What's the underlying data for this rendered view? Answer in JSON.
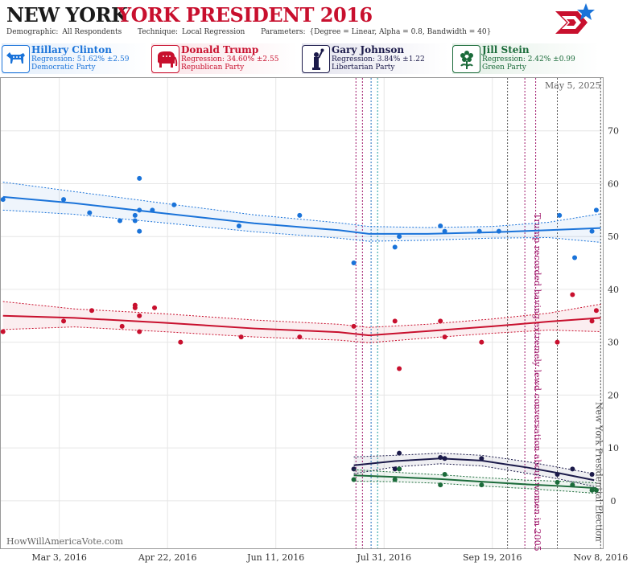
{
  "header": {
    "state": "NEW YORK",
    "subtitle": "YORK PRESIDENT 2016",
    "demographic_key": "Demographic:",
    "demographic_val": "All Respondents",
    "technique_key": "Technique:",
    "technique_val": "Local Regression",
    "parameters_key": "Parameters:",
    "parameters_val": "{Degree = Linear, Alpha = 0.8, Bandwidth = 40}"
  },
  "candidates": [
    {
      "name": "Hillary Clinton",
      "regression": "Regression: 51.62% ±2.59",
      "party": "Democratic Party",
      "color": "#1a73d9",
      "icon": "donkey-icon"
    },
    {
      "name": "Donald Trump",
      "regression": "Regression: 34.60% ±2.55",
      "party": "Republican Party",
      "color": "#c8102e",
      "icon": "elephant-icon"
    },
    {
      "name": "Gary Johnson",
      "regression": "Regression: 3.84% ±1.22",
      "party": "Libertarian Party",
      "color": "#1b1a4a",
      "icon": "liberty-statue-icon"
    },
    {
      "name": "Jill Stein",
      "regression": "Regression: 2.42% ±0.99",
      "party": "Green Party",
      "color": "#1b6b3a",
      "icon": "flower-icon"
    }
  ],
  "footer": {
    "watermark": "HowWillAmericaVote.com",
    "datestamp": "May 5, 2025"
  },
  "chart_data": {
    "type": "scatter",
    "x_tick_labels": [
      "Mar 3, 2016",
      "Apr 22, 2016",
      "Jun 11, 2016",
      "Jul 31, 2016",
      "Sep 19, 2016",
      "Nov 8, 2016"
    ],
    "x_ticks": [
      "2016-03-03",
      "2016-04-22",
      "2016-06-11",
      "2016-07-31",
      "2016-09-19",
      "2016-11-08"
    ],
    "xlim": [
      "2016-02-05",
      "2016-11-09"
    ],
    "y_ticks": [
      0,
      10,
      20,
      30,
      40,
      50,
      60,
      70
    ],
    "ylim": [
      -9,
      80
    ],
    "grid": true,
    "annotations": [
      {
        "date": "2016-10-07",
        "text": "Trump recorded having extremely lewd conversation about women in 2005",
        "color": "#a0186b"
      },
      {
        "date": "2016-11-08",
        "text": "New York Presidential Election",
        "color": "#555555"
      }
    ],
    "event_lines": [
      {
        "date": "2016-07-18",
        "color": "#a0186b"
      },
      {
        "date": "2016-07-21",
        "color": "#a0186b"
      },
      {
        "date": "2016-07-25",
        "color": "#1f6fbf"
      },
      {
        "date": "2016-07-28",
        "color": "#1f9e9e"
      },
      {
        "date": "2016-09-26",
        "color": "#555555"
      },
      {
        "date": "2016-10-04",
        "color": "#a0186b"
      },
      {
        "date": "2016-10-09",
        "color": "#a0186b"
      },
      {
        "date": "2016-10-19",
        "color": "#555555"
      },
      {
        "date": "2016-11-08",
        "color": "#555555"
      }
    ],
    "series": [
      {
        "name": "Hillary Clinton",
        "color": "#1a73d9",
        "points": [
          [
            "2016-02-06",
            57
          ],
          [
            "2016-03-05",
            57
          ],
          [
            "2016-03-17",
            54.5
          ],
          [
            "2016-03-31",
            53
          ],
          [
            "2016-04-07",
            54
          ],
          [
            "2016-04-07",
            53
          ],
          [
            "2016-04-09",
            61
          ],
          [
            "2016-04-09",
            51
          ],
          [
            "2016-04-09",
            55
          ],
          [
            "2016-04-15",
            55
          ],
          [
            "2016-04-25",
            56
          ],
          [
            "2016-05-25",
            52
          ],
          [
            "2016-06-22",
            54
          ],
          [
            "2016-07-17",
            45
          ],
          [
            "2016-08-05",
            48
          ],
          [
            "2016-08-07",
            50
          ],
          [
            "2016-08-26",
            52
          ],
          [
            "2016-08-28",
            51
          ],
          [
            "2016-09-13",
            51
          ],
          [
            "2016-09-22",
            51
          ],
          [
            "2016-10-20",
            54
          ],
          [
            "2016-10-27",
            46
          ],
          [
            "2016-11-04",
            51
          ],
          [
            "2016-11-06",
            55
          ]
        ],
        "trend": [
          [
            "2016-02-06",
            57.5
          ],
          [
            "2016-03-10",
            56.3
          ],
          [
            "2016-04-20",
            54.4
          ],
          [
            "2016-06-01",
            52.5
          ],
          [
            "2016-07-10",
            51.2
          ],
          [
            "2016-07-24",
            50.5
          ],
          [
            "2016-08-20",
            50.5
          ],
          [
            "2016-09-19",
            50.8
          ],
          [
            "2016-10-15",
            51.2
          ],
          [
            "2016-11-08",
            51.6
          ]
        ],
        "band": [
          [
            "2016-02-06",
            55,
            60.3
          ],
          [
            "2016-03-10",
            54.2,
            58.5
          ],
          [
            "2016-04-20",
            52.6,
            56.3
          ],
          [
            "2016-06-01",
            50.9,
            54.1
          ],
          [
            "2016-07-10",
            49.7,
            52.6
          ],
          [
            "2016-07-24",
            49.1,
            51.9
          ],
          [
            "2016-08-20",
            49.3,
            51.7
          ],
          [
            "2016-09-19",
            49.7,
            51.9
          ],
          [
            "2016-10-15",
            49.8,
            52.7
          ],
          [
            "2016-11-08",
            48.9,
            54.3
          ]
        ]
      },
      {
        "name": "Donald Trump",
        "color": "#c8102e",
        "points": [
          [
            "2016-02-06",
            32
          ],
          [
            "2016-03-05",
            34
          ],
          [
            "2016-03-18",
            36
          ],
          [
            "2016-04-01",
            33
          ],
          [
            "2016-04-07",
            37
          ],
          [
            "2016-04-07",
            36.5
          ],
          [
            "2016-04-09",
            35
          ],
          [
            "2016-04-09",
            32
          ],
          [
            "2016-04-16",
            36.5
          ],
          [
            "2016-04-28",
            30
          ],
          [
            "2016-05-26",
            31
          ],
          [
            "2016-06-22",
            31
          ],
          [
            "2016-07-17",
            33
          ],
          [
            "2016-08-05",
            34
          ],
          [
            "2016-08-07",
            25
          ],
          [
            "2016-08-26",
            34
          ],
          [
            "2016-08-28",
            31
          ],
          [
            "2016-09-14",
            30
          ],
          [
            "2016-10-19",
            30
          ],
          [
            "2016-10-26",
            39
          ],
          [
            "2016-11-04",
            34
          ],
          [
            "2016-11-06",
            36
          ]
        ],
        "trend": [
          [
            "2016-02-06",
            35
          ],
          [
            "2016-03-10",
            34.6
          ],
          [
            "2016-04-20",
            33.7
          ],
          [
            "2016-06-01",
            32.6
          ],
          [
            "2016-07-10",
            31.9
          ],
          [
            "2016-07-24",
            31.3
          ],
          [
            "2016-08-20",
            32.1
          ],
          [
            "2016-09-19",
            33
          ],
          [
            "2016-10-15",
            33.9
          ],
          [
            "2016-11-08",
            34.6
          ]
        ],
        "band": [
          [
            "2016-02-06",
            32.4,
            37.7
          ],
          [
            "2016-03-10",
            32.9,
            36.3
          ],
          [
            "2016-04-20",
            32,
            35.4
          ],
          [
            "2016-06-01",
            31,
            34.2
          ],
          [
            "2016-07-10",
            30.4,
            33.4
          ],
          [
            "2016-07-24",
            29.9,
            32.8
          ],
          [
            "2016-08-20",
            30.8,
            33.4
          ],
          [
            "2016-09-19",
            31.7,
            34.4
          ],
          [
            "2016-10-15",
            32.3,
            35.5
          ],
          [
            "2016-11-08",
            32,
            37.2
          ]
        ]
      },
      {
        "name": "Gary Johnson",
        "color": "#1b1a4a",
        "points": [
          [
            "2016-07-17",
            6
          ],
          [
            "2016-08-05",
            6
          ],
          [
            "2016-08-07",
            9
          ],
          [
            "2016-08-07",
            6
          ],
          [
            "2016-08-26",
            8.2
          ],
          [
            "2016-08-28",
            8
          ],
          [
            "2016-09-14",
            8
          ],
          [
            "2016-10-19",
            5
          ],
          [
            "2016-10-26",
            6
          ],
          [
            "2016-11-04",
            5
          ]
        ],
        "trend": [
          [
            "2016-07-17",
            6.7
          ],
          [
            "2016-08-05",
            7.5
          ],
          [
            "2016-08-26",
            8
          ],
          [
            "2016-09-14",
            7.6
          ],
          [
            "2016-10-05",
            6.3
          ],
          [
            "2016-10-20",
            5.2
          ],
          [
            "2016-11-05",
            3.9
          ]
        ],
        "band": [
          [
            "2016-07-17",
            5.1,
            8.3
          ],
          [
            "2016-08-05",
            6.4,
            8.6
          ],
          [
            "2016-08-26",
            7,
            9
          ],
          [
            "2016-09-14",
            6.6,
            8.6
          ],
          [
            "2016-10-05",
            5.2,
            7.4
          ],
          [
            "2016-10-20",
            4.1,
            6.3
          ],
          [
            "2016-11-05",
            2.7,
            5.1
          ]
        ]
      },
      {
        "name": "Jill Stein",
        "color": "#1b6b3a",
        "points": [
          [
            "2016-07-17",
            4
          ],
          [
            "2016-08-05",
            4
          ],
          [
            "2016-08-07",
            6
          ],
          [
            "2016-08-26",
            3
          ],
          [
            "2016-08-28",
            5
          ],
          [
            "2016-09-14",
            3
          ],
          [
            "2016-10-19",
            3.5
          ],
          [
            "2016-10-26",
            3
          ],
          [
            "2016-11-04",
            2
          ],
          [
            "2016-11-06",
            2
          ]
        ],
        "trend": [
          [
            "2016-07-17",
            4.8
          ],
          [
            "2016-08-05",
            4.5
          ],
          [
            "2016-08-26",
            4.1
          ],
          [
            "2016-09-14",
            3.6
          ],
          [
            "2016-10-05",
            3.1
          ],
          [
            "2016-10-20",
            2.8
          ],
          [
            "2016-11-06",
            2.4
          ]
        ],
        "band": [
          [
            "2016-07-17",
            3.7,
            5.9
          ],
          [
            "2016-08-05",
            3.6,
            5.4
          ],
          [
            "2016-08-26",
            3.3,
            4.9
          ],
          [
            "2016-09-14",
            2.8,
            4.4
          ],
          [
            "2016-10-05",
            2.3,
            3.9
          ],
          [
            "2016-10-20",
            1.9,
            3.7
          ],
          [
            "2016-11-06",
            1.4,
            3.4
          ]
        ]
      }
    ]
  }
}
